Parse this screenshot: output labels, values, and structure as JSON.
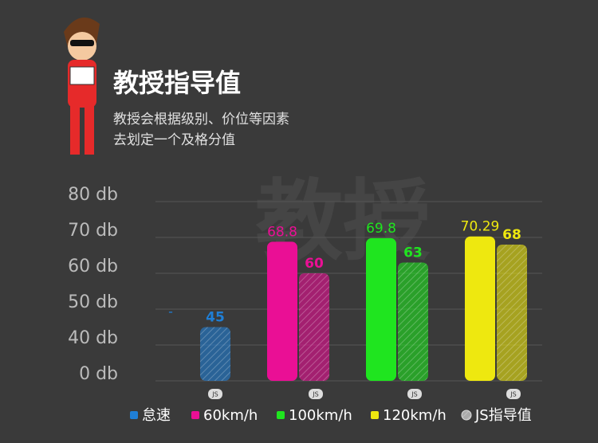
{
  "header": {
    "title": "教授指导值",
    "subtitle_lines": [
      "教授会根据级别、价位等因素",
      "去划定一个及格分值"
    ]
  },
  "watermark": "教授",
  "chart_data": {
    "type": "bar",
    "categories": [
      "怠速",
      "60km/h",
      "100km/h",
      "120km/h"
    ],
    "colors": [
      "#1f7fd6",
      "#ea0f95",
      "#1fe51f",
      "#eee80f"
    ],
    "series": [
      {
        "values": [
          null,
          68.8,
          69.8,
          70.29
        ],
        "value_labels": [
          "-",
          "68.8",
          "69.8",
          "70.29"
        ]
      },
      {
        "name": "JS指导值",
        "hatched": true,
        "values": [
          45,
          60,
          63,
          68
        ]
      }
    ],
    "badge": "JS",
    "ylim": [
      0,
      80
    ],
    "yticks": [
      {
        "value": 0,
        "label": "0 db"
      },
      {
        "value": 40,
        "label": "40 db"
      },
      {
        "value": 50,
        "label": "50 db"
      },
      {
        "value": 60,
        "label": "60 db"
      },
      {
        "value": 70,
        "label": "70 db"
      },
      {
        "value": 80,
        "label": "80 db"
      }
    ],
    "grid": true
  }
}
